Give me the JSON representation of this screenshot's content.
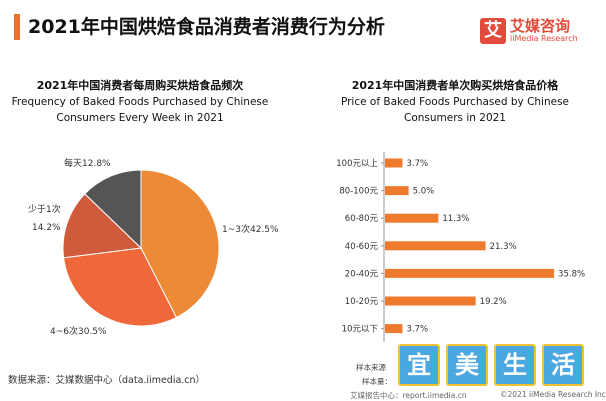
{
  "header": {
    "title": "2021年中国烘焙食品消费者消费行为分析",
    "logo_glyph": "艾",
    "logo_cn": "艾媒咨询",
    "logo_en": "iiMedia Research",
    "accent_color": "#e8722c",
    "logo_color": "#e14b3b"
  },
  "chart_data": [
    {
      "type": "pie",
      "title": "2021年中国消费者每周购买烘焙食品频次",
      "subtitle": "Frequency of Baked Foods Purchased by Chinese Consumers Every Week in 2021",
      "slices": [
        {
          "label": "1~3次",
          "value": 42.5,
          "display": "1~3次42.5%",
          "color": "#ee8a35"
        },
        {
          "label": "4~6次",
          "value": 30.5,
          "display": "4~6次30.5%",
          "color": "#f0683a"
        },
        {
          "label": "少于1次",
          "value": 14.2,
          "display_line1": "少于1次",
          "display_line2": "14.2%",
          "color": "#cf5a3c"
        },
        {
          "label": "每天",
          "value": 12.8,
          "display": "每天12.8%",
          "color": "#555555"
        }
      ]
    },
    {
      "type": "bar",
      "orientation": "horizontal",
      "title": "2021年中国消费者单次购买烘焙食品价格",
      "subtitle": "Price of Baked Foods Purchased by Chinese Consumers in 2021",
      "categories": [
        "100元以上",
        "80-100元",
        "60-80元",
        "40-60元",
        "20-40元",
        "10-20元",
        "10元以下"
      ],
      "values": [
        3.7,
        5.0,
        11.3,
        21.3,
        35.8,
        19.2,
        3.7
      ],
      "value_labels": [
        "3.7%",
        "5.0%",
        "11.3%",
        "21.3%",
        "35.8%",
        "19.2%",
        "3.7%"
      ],
      "xlim": [
        0,
        36
      ],
      "color": "#ee7a2e"
    }
  ],
  "source": "数据来源：艾媒数据中心（data.iimedia.cn）",
  "sample_line1": "样本来源",
  "sample_line2": "样本量：",
  "footer_left": "艾媒报告中心：report.iimedia.cn",
  "footer_right": "©2021  iiMedia Research  Inc",
  "watermark": [
    "宜",
    "美",
    "生",
    "活"
  ]
}
